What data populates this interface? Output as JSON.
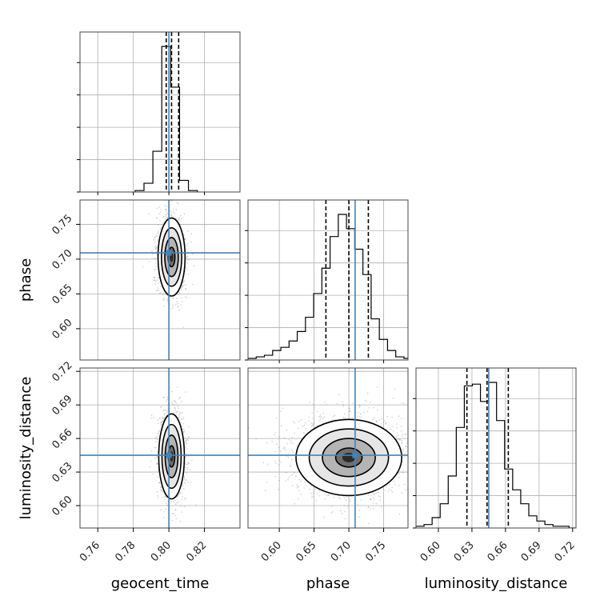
{
  "chart_data": {
    "type": "corner",
    "parameters": [
      "geocent_time",
      "phase",
      "luminosity_distance"
    ],
    "truth_color": "#4682b4",
    "contour_color": "#000000",
    "ranges": {
      "geocent_time": [
        0.75,
        0.84
      ],
      "phase": [
        0.555,
        0.785
      ],
      "luminosity_distance": [
        0.58,
        0.723
      ]
    },
    "ticks": {
      "geocent_time": [
        "0.76",
        "0.78",
        "0.80",
        "0.82"
      ],
      "phase": [
        "0.60",
        "0.65",
        "0.70",
        "0.75"
      ],
      "luminosity_distance": [
        "0.60",
        "0.63",
        "0.66",
        "0.69",
        "0.72"
      ]
    },
    "grid": true,
    "marginals": {
      "geocent_time": {
        "bin_edges": [
          0.781,
          0.786,
          0.791,
          0.796,
          0.801,
          0.806,
          0.811,
          0.816
        ],
        "counts": [
          1,
          6,
          28,
          100,
          72,
          8,
          1
        ],
        "quantiles": [
          0.7985,
          0.8015,
          0.8055
        ],
        "truth": 0.8
      },
      "phase": {
        "bin_edges": [
          0.555,
          0.5668,
          0.5786,
          0.5904,
          0.6022,
          0.614,
          0.6258,
          0.6376,
          0.6494,
          0.6612,
          0.673,
          0.6848,
          0.6966,
          0.7084,
          0.7202,
          0.732,
          0.7438,
          0.7556,
          0.7674,
          0.7792,
          0.791
        ],
        "counts": [
          1,
          2,
          3,
          6,
          8,
          12,
          18,
          27,
          42,
          58,
          78,
          92,
          83,
          70,
          54,
          26,
          13,
          6,
          2,
          1
        ],
        "quantiles": [
          0.667,
          0.7,
          0.728
        ],
        "truth": 0.709
      },
      "luminosity_distance": {
        "bin_edges": [
          0.58,
          0.5872,
          0.5944,
          0.6016,
          0.6088,
          0.616,
          0.6232,
          0.6304,
          0.6376,
          0.6448,
          0.652,
          0.6592,
          0.6664,
          0.6736,
          0.6808,
          0.688,
          0.6952,
          0.7024,
          0.7096,
          0.7168,
          0.724
        ],
        "counts": [
          1,
          2,
          6,
          14,
          30,
          58,
          82,
          83,
          73,
          84,
          62,
          34,
          22,
          14,
          7,
          4,
          2,
          1,
          1,
          0
        ],
        "quantiles": [
          0.6255,
          0.6435,
          0.6625
        ],
        "truth": 0.645
      }
    },
    "joint": [
      {
        "x": "geocent_time",
        "y": "phase",
        "center": [
          0.8015,
          0.703
        ],
        "sigma": [
          0.0038,
          0.028
        ],
        "n_points": 1400
      },
      {
        "x": "geocent_time",
        "y": "luminosity_distance",
        "center": [
          0.8015,
          0.644
        ],
        "sigma": [
          0.0036,
          0.019
        ],
        "n_points": 1400
      },
      {
        "x": "phase",
        "y": "luminosity_distance",
        "center": [
          0.7,
          0.643
        ],
        "sigma": [
          0.038,
          0.017
        ],
        "n_points": 1800
      }
    ],
    "truths": {
      "geocent_time": 0.8,
      "phase": 0.709,
      "luminosity_distance": 0.645
    }
  }
}
